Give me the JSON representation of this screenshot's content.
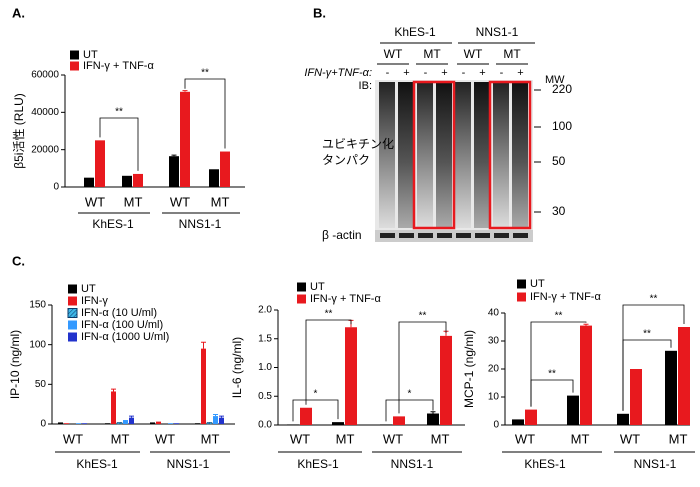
{
  "chart_data": [
    {
      "type": "bar",
      "panel": "A.",
      "y_label": "β5i活性 (RLU)",
      "categories": [
        "WT",
        "MT",
        "WT",
        "MT"
      ],
      "groups": [
        "KhES-1",
        "NNS1-1"
      ],
      "ylim": [
        0,
        60000
      ],
      "yticks": [
        0,
        20000,
        40000,
        60000
      ],
      "series": [
        {
          "name": "UT",
          "color": "#000000",
          "values": [
            5000,
            6000,
            16500,
            9500
          ],
          "errors": [
            null,
            null,
            600,
            null
          ]
        },
        {
          "name": "IFN-γ + TNF-α",
          "color": "#e8191e",
          "values": [
            25000,
            7000,
            51000,
            19000
          ],
          "errors": [
            null,
            null,
            600,
            null
          ]
        }
      ],
      "annotations": [
        "**",
        "**"
      ]
    },
    {
      "type": "bar",
      "panel": "C.",
      "y_label": "IP-10 (ng/ml)",
      "categories": [
        "WT",
        "MT",
        "WT",
        "MT"
      ],
      "groups": [
        "KhES-1",
        "NNS1-1"
      ],
      "ylim": [
        0,
        150
      ],
      "yticks": [
        0,
        50,
        100,
        150
      ],
      "series": [
        {
          "name": "UT",
          "color": "#000000",
          "values": [
            2,
            1,
            2,
            1
          ],
          "errors": [
            null,
            null,
            null,
            null
          ]
        },
        {
          "name": "IFN-γ",
          "color": "#e8191e",
          "values": [
            1,
            41,
            3,
            95
          ],
          "errors": [
            null,
            3,
            null,
            8
          ]
        },
        {
          "name": "IFN-α (10 U/ml)",
          "color": "#3fb8e8",
          "pattern": "hatch",
          "values": [
            0,
            2,
            0,
            2
          ],
          "errors": [
            null,
            null,
            null,
            null
          ]
        },
        {
          "name": "IFN-α (100 U/ml)",
          "color": "#3399ff",
          "values": [
            1,
            5,
            1,
            10
          ],
          "errors": [
            null,
            null,
            null,
            2
          ]
        },
        {
          "name": "IFN-α (1000 U/ml)",
          "color": "#2233cc",
          "values": [
            1,
            8,
            1,
            8
          ],
          "errors": [
            null,
            2,
            null,
            2
          ]
        }
      ],
      "annotations": []
    },
    {
      "type": "bar",
      "y_label": "IL-6 (ng/ml)",
      "categories": [
        "WT",
        "MT",
        "WT",
        "MT"
      ],
      "groups": [
        "KhES-1",
        "NNS1-1"
      ],
      "ylim": [
        0,
        2
      ],
      "yticks": [
        {
          "value": 0,
          "label": "0.0"
        },
        {
          "value": 0.5,
          "label": "0.5"
        },
        {
          "value": 1,
          "label": "1.0"
        },
        {
          "value": 1.5,
          "label": "1.5"
        },
        {
          "value": 2,
          "label": "2.0"
        }
      ],
      "series": [
        {
          "name": "UT",
          "color": "#000000",
          "values": [
            0.01,
            0.05,
            0.01,
            0.2
          ],
          "errors": [
            null,
            null,
            null,
            0.03
          ]
        },
        {
          "name": "IFN-γ + TNF-α",
          "color": "#e8191e",
          "values": [
            0.3,
            1.7,
            0.15,
            1.55
          ],
          "errors": [
            null,
            0.12,
            null,
            0.08
          ]
        }
      ],
      "annotations": [
        "*",
        "**",
        "*",
        "**"
      ]
    },
    {
      "type": "bar",
      "y_label": "MCP-1 (ng/ml)",
      "categories": [
        "WT",
        "MT",
        "WT",
        "MT"
      ],
      "groups": [
        "KhES-1",
        "NNS1-1"
      ],
      "ylim": [
        0,
        40
      ],
      "yticks": [
        0,
        10,
        20,
        30,
        40
      ],
      "series": [
        {
          "name": "UT",
          "color": "#000000",
          "values": [
            2,
            10.5,
            4,
            26.5
          ],
          "errors": [
            null,
            null,
            null,
            null
          ]
        },
        {
          "name": "IFN-γ + TNF-α",
          "color": "#e8191e",
          "values": [
            5.5,
            35.5,
            20,
            35
          ],
          "errors": [
            null,
            0.5,
            null,
            null
          ]
        }
      ],
      "annotations": [
        "**",
        "**",
        "**",
        "**"
      ]
    }
  ],
  "blot": {
    "label": "B.",
    "groups": [
      "KhES-1",
      "NNS1-1"
    ],
    "genotypes": [
      "WT",
      "MT",
      "WT",
      "MT"
    ],
    "treatment_label": "IFN-γ+TNF-α:",
    "treatment": [
      "-",
      "+",
      "-",
      "+",
      "-",
      "+",
      "-",
      "+"
    ],
    "ib": "IB:",
    "mw_title": "MW",
    "mw": [
      "220",
      "100",
      "50",
      "30"
    ],
    "protein": [
      "ユビキチン化",
      "タンパク"
    ],
    "loading": "β -actin"
  }
}
